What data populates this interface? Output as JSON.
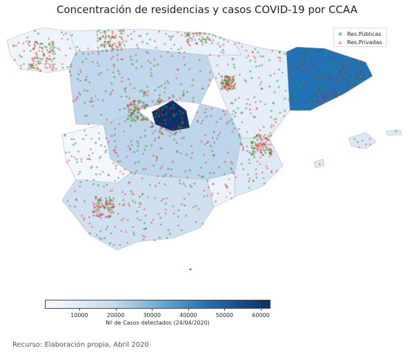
{
  "title": "Concentración de residencias y casos COVID-19 por CCAA",
  "legend": [
    {
      "label": "Res.Públicas",
      "color": "#2ca02c",
      "marker": "circle"
    },
    {
      "label": "Res.Privadas",
      "color": "#ff0000",
      "marker": "triangle"
    }
  ],
  "colorbar": {
    "label": "Nº de Casos detectados (24/04/2020)",
    "ticks": [
      "10000",
      "20000",
      "30000",
      "40000",
      "50000",
      "60000"
    ],
    "colormap": [
      "#f7fbff",
      "#c6dbef",
      "#6baed6",
      "#2171b5",
      "#08306b"
    ]
  },
  "source": "Recurso: Elaboración propia, Abril 2020",
  "colors": {
    "public": "#2ca02c",
    "private": "#ff0000",
    "border": "#b0b8c8"
  }
}
